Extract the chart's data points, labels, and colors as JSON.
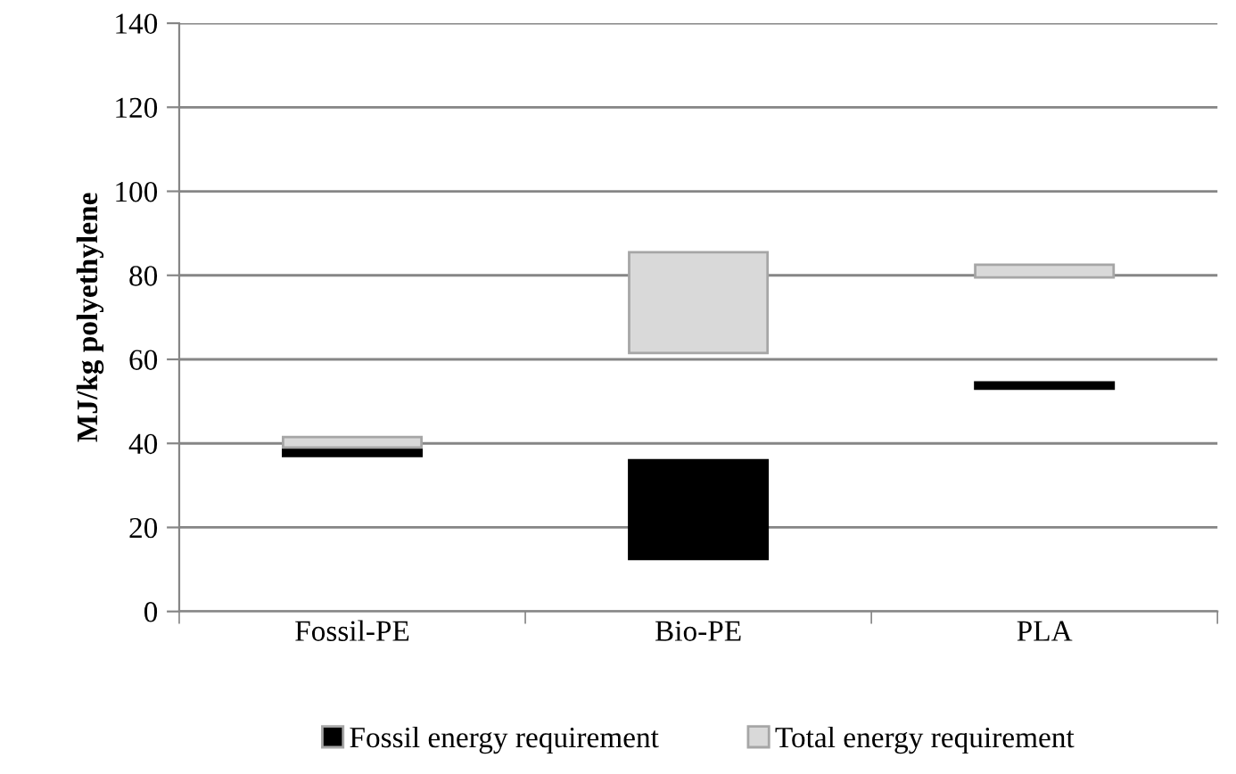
{
  "chart_data": {
    "type": "bar",
    "ylabel": "MJ/kg polyethylene",
    "categories": [
      "Fossil-PE",
      "Bio-PE",
      "PLA"
    ],
    "series": [
      {
        "name": "Fossil energy requirement",
        "color": "#000000",
        "base": [
          37,
          12.5,
          53
        ],
        "values": [
          2,
          23.5,
          1.5
        ]
      },
      {
        "name": "Total energy requirement",
        "color": "#d9d9d9",
        "base": [
          39,
          61.5,
          79.5
        ],
        "values": [
          2.5,
          24,
          3
        ]
      }
    ],
    "ylim": [
      0,
      140
    ],
    "yticks": [
      0,
      20,
      40,
      60,
      80,
      100,
      120,
      140
    ],
    "grid": "y",
    "legend": "bottom"
  }
}
